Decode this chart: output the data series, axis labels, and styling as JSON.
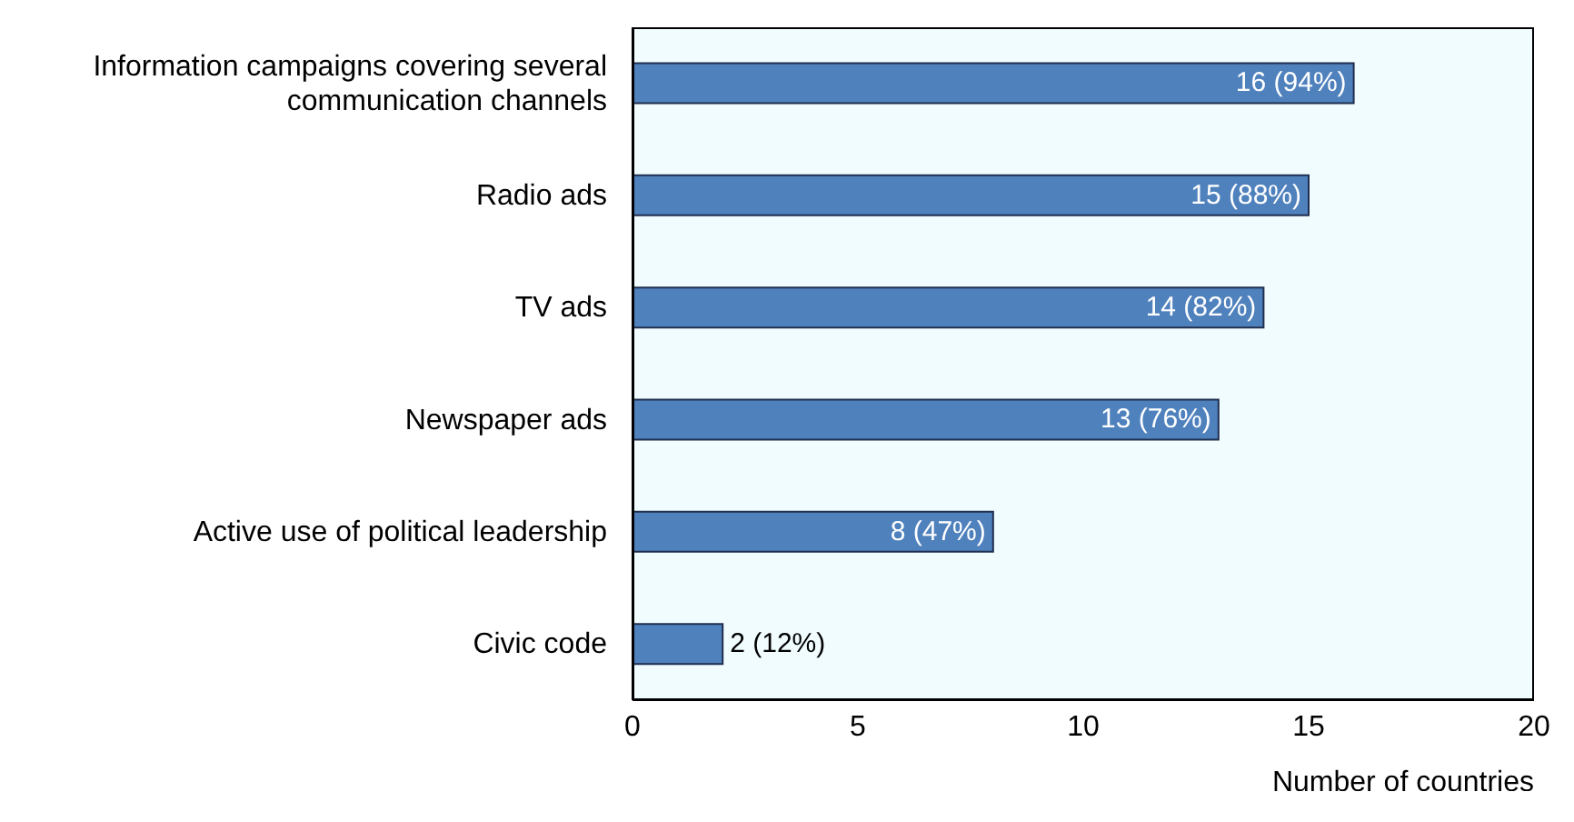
{
  "chart_data": {
    "type": "bar",
    "orientation": "horizontal",
    "xlabel": "Number of countries",
    "categories": [
      "Information campaigns covering several communication channels",
      "Radio ads",
      "TV ads",
      "Newspaper ads",
      "Active use of political leadership",
      "Civic code"
    ],
    "values": [
      16,
      15,
      14,
      13,
      8,
      2
    ],
    "value_labels": [
      "16 (94%)",
      "15 (88%)",
      "14 (82%)",
      "13 (76%)",
      "8 (47%)",
      "2 (12%)"
    ],
    "color": "#4f81bd",
    "xlim": [
      0,
      20
    ],
    "xticks": [
      0,
      5,
      10,
      15,
      20
    ],
    "grid": false
  }
}
